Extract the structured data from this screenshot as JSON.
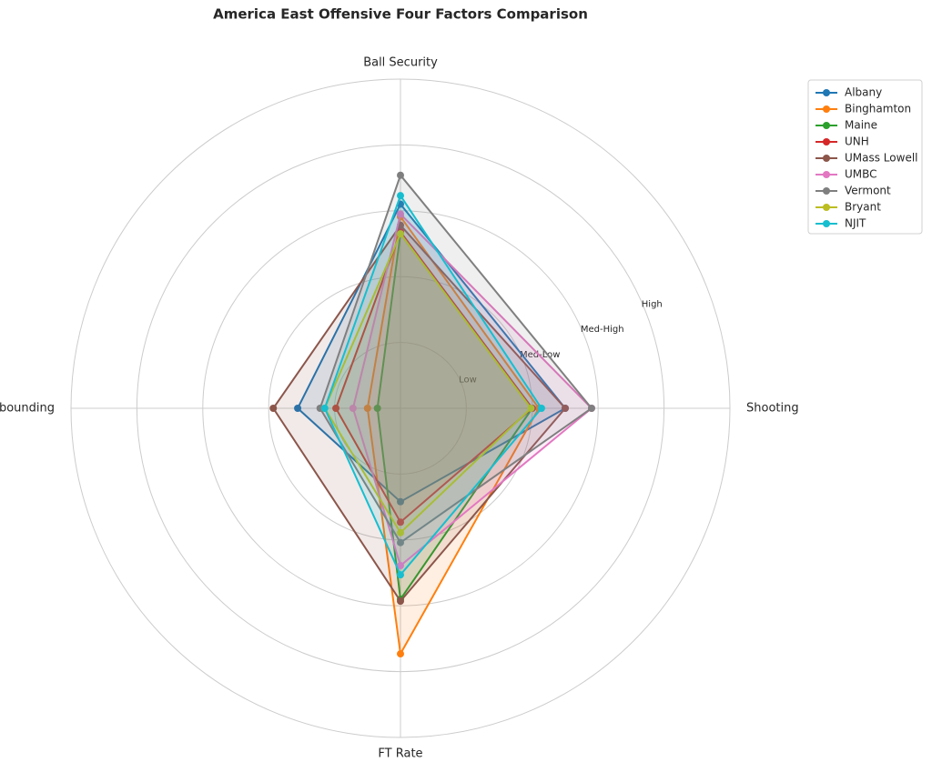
{
  "chart_data": {
    "type": "radar",
    "title": "America East Offensive Four Factors Comparison",
    "categories": [
      "Shooting",
      "Ball Security",
      "Off Rebounding",
      "FT Rate"
    ],
    "rlim": [
      0,
      5
    ],
    "rticks": [
      {
        "value": 1,
        "label": "Low"
      },
      {
        "value": 2,
        "label": "Med-Low"
      },
      {
        "value": 3,
        "label": "Med-High"
      },
      {
        "value": 4,
        "label": "High"
      }
    ],
    "grid": true,
    "legend": "upper right",
    "series": [
      {
        "name": "Albany",
        "color": "#1f77b4",
        "values": [
          2.5,
          3.1,
          1.56,
          1.42
        ]
      },
      {
        "name": "Binghamton",
        "color": "#ff7f0e",
        "values": [
          2.1,
          2.91,
          0.5,
          3.73
        ]
      },
      {
        "name": "Maine",
        "color": "#2ca02c",
        "values": [
          2.0,
          2.65,
          0.35,
          2.9
        ]
      },
      {
        "name": "UNH",
        "color": "#d62728",
        "values": [
          2.0,
          2.68,
          0.98,
          1.73
        ]
      },
      {
        "name": "UMass Lowell",
        "color": "#8c564b",
        "values": [
          2.5,
          2.78,
          1.93,
          2.93
        ]
      },
      {
        "name": "UMBC",
        "color": "#e377c2",
        "values": [
          2.9,
          2.95,
          0.72,
          2.39
        ]
      },
      {
        "name": "Vermont",
        "color": "#7f7f7f",
        "values": [
          2.9,
          3.54,
          1.22,
          2.04
        ]
      },
      {
        "name": "Bryant",
        "color": "#bcbd22",
        "values": [
          1.98,
          2.65,
          1.15,
          1.89
        ]
      },
      {
        "name": "NJIT",
        "color": "#17becf",
        "values": [
          2.14,
          3.23,
          1.15,
          2.53
        ]
      }
    ]
  }
}
